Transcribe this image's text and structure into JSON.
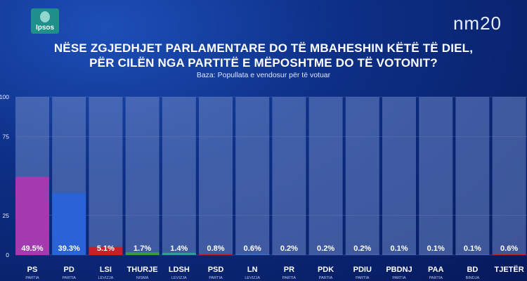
{
  "header": {
    "logo_text": "Ipsos",
    "brand": "nm20",
    "title_line1": "NËSE ZGJEDHJET PARLAMENTARE DO TË MBAHESHIN KËTË TË DIEL,",
    "title_line2": "PËR CILËN NGA PARTITË E MËPOSHTME DO TË VOTONIT?",
    "subtitle": "Baza: Popullata e vendosur për të votuar"
  },
  "colors": {
    "track": "#6c86c6",
    "grid": "#8aa0d6"
  },
  "chart_data": {
    "type": "bar",
    "title": "NËSE ZGJEDHJET PARLAMENTARE DO TË MBAHESHIN KËTË TË DIEL, PËR CILËN NGA PARTITË E MËPOSHTME DO TË VOTONIT?",
    "subtitle": "Baza: Popullata e vendosur për të votuar",
    "ylim": [
      0,
      100
    ],
    "yticks": [
      0,
      25,
      75,
      100
    ],
    "grid": true,
    "categories": [
      "PS",
      "PD",
      "LSI",
      "THURJE",
      "LDSH",
      "PSD",
      "LN",
      "PR",
      "PDK",
      "PDIU",
      "PBDNJ",
      "PAA",
      "BD",
      "TJETËR"
    ],
    "sublabels": [
      "PARTIA",
      "PARTIA",
      "LEVIZJA",
      "NISMA",
      "LEVIZJA",
      "PARTIA",
      "LEVIZJA",
      "PARTIA",
      "PARTIA",
      "PARTIA",
      "PARTIA",
      "PARTIA",
      "BINDJA",
      ""
    ],
    "values": [
      49.5,
      39.3,
      5.1,
      1.7,
      1.4,
      0.8,
      0.6,
      0.2,
      0.2,
      0.2,
      0.1,
      0.1,
      0.1,
      0.6
    ],
    "value_labels": [
      "49.5%",
      "39.3%",
      "5.1%",
      "1.7%",
      "1.4%",
      "0.8%",
      "0.6%",
      "0.2%",
      "0.2%",
      "0.2%",
      "0.1%",
      "0.1%",
      "0.1%",
      "0.6%"
    ],
    "bar_colors": [
      "#a43ab0",
      "#2a63d6",
      "#c8202a",
      "#3b9a4a",
      "#2f9d9a",
      "#c8202a",
      "#3a6fd0",
      "#4a5fae",
      "#4a5fae",
      "#4a5fae",
      "#4a5fae",
      "#4a5fae",
      "#4a5fae",
      "#c8202a"
    ]
  }
}
